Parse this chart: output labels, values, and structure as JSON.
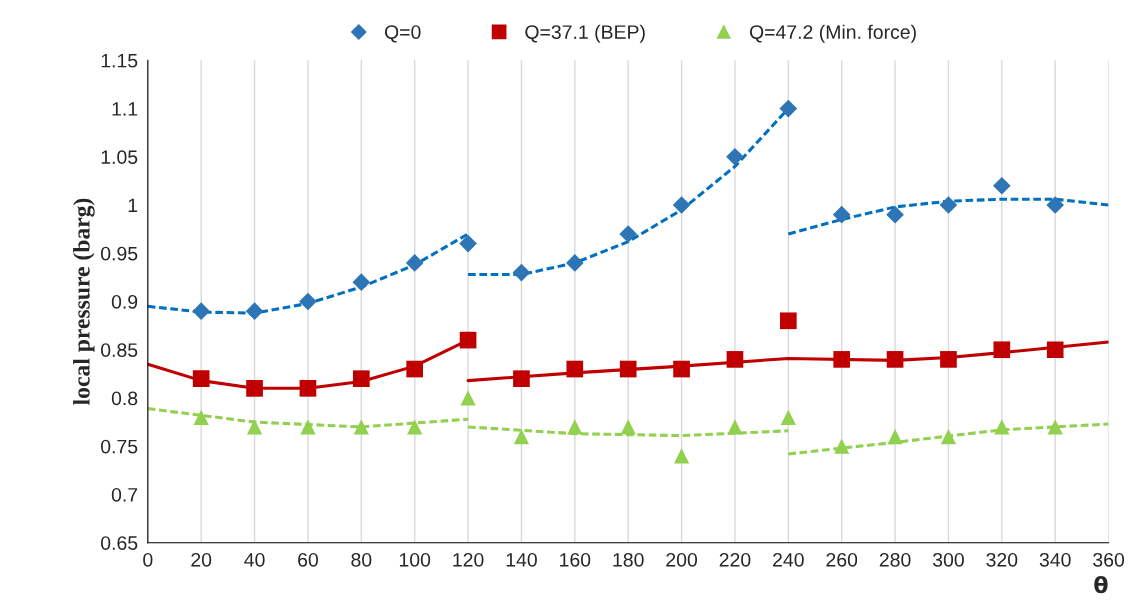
{
  "chart_data": {
    "type": "scatter",
    "xlabel": "θ",
    "ylabel": "local pressure (barg)",
    "x": [
      20,
      40,
      60,
      80,
      100,
      120,
      140,
      160,
      180,
      200,
      220,
      240,
      260,
      280,
      300,
      320,
      340
    ],
    "xlim": [
      0,
      360
    ],
    "xticks": [
      0,
      20,
      40,
      60,
      80,
      100,
      120,
      140,
      160,
      180,
      200,
      220,
      240,
      260,
      280,
      300,
      320,
      340,
      360
    ],
    "ylim": [
      0.65,
      1.15
    ],
    "yticks": [
      0.65,
      0.7,
      0.75,
      0.8,
      0.85,
      0.9,
      0.95,
      1,
      1.05,
      1.1,
      1.15
    ],
    "grid": "x",
    "legend": "top",
    "series": [
      {
        "name": "Q=0",
        "marker": "diamond",
        "color": "#2e75b6",
        "values": [
          0.89,
          0.89,
          0.9,
          0.92,
          0.94,
          0.96,
          0.93,
          0.94,
          0.97,
          1.0,
          1.05,
          1.1,
          0.99,
          0.99,
          1.0,
          1.02,
          1.0
        ]
      },
      {
        "name": "Q=37.1 (BEP)",
        "marker": "square",
        "color": "#c00000",
        "values": [
          0.82,
          0.81,
          0.81,
          0.82,
          0.83,
          0.86,
          0.82,
          0.83,
          0.83,
          0.83,
          0.84,
          0.88,
          0.84,
          0.84,
          0.84,
          0.85,
          0.85
        ]
      },
      {
        "name": "Q=47.2 (Min. force)",
        "marker": "triangle",
        "color": "#92d050",
        "values": [
          0.78,
          0.77,
          0.77,
          0.77,
          0.77,
          0.8,
          0.76,
          0.77,
          0.77,
          0.74,
          0.77,
          0.78,
          0.75,
          0.76,
          0.76,
          0.77,
          0.77
        ]
      },
      {
        "type": "line",
        "line_style": "dashed",
        "color": "#0070c0",
        "x": [
          0,
          20,
          40,
          60,
          80,
          100,
          120
        ],
        "values": [
          0.895,
          0.889,
          0.888,
          0.898,
          0.915,
          0.938,
          0.97
        ]
      },
      {
        "type": "line",
        "line_style": "dashed",
        "color": "#0070c0",
        "x": [
          120,
          140,
          160,
          180,
          200,
          220,
          240
        ],
        "values": [
          0.928,
          0.928,
          0.94,
          0.962,
          0.995,
          1.04,
          1.1
        ]
      },
      {
        "type": "line",
        "line_style": "dashed",
        "color": "#0070c0",
        "x": [
          240,
          260,
          280,
          300,
          320,
          340,
          360
        ],
        "values": [
          0.97,
          0.985,
          0.998,
          1.004,
          1.006,
          1.006,
          1.0
        ]
      },
      {
        "type": "line",
        "line_style": "solid",
        "color": "#c00000",
        "x": [
          0,
          20,
          40,
          60,
          80,
          100,
          120
        ],
        "values": [
          0.835,
          0.818,
          0.81,
          0.81,
          0.817,
          0.833,
          0.86
        ]
      },
      {
        "type": "line",
        "line_style": "solid",
        "color": "#c00000",
        "x": [
          120,
          160,
          200,
          240,
          280,
          300,
          320,
          360
        ],
        "values": [
          0.818,
          0.826,
          0.833,
          0.841,
          0.839,
          0.842,
          0.847,
          0.858
        ]
      },
      {
        "type": "line",
        "line_style": "dashed",
        "color": "#92d050",
        "x": [
          0,
          40,
          80,
          120
        ],
        "values": [
          0.789,
          0.775,
          0.77,
          0.778
        ]
      },
      {
        "type": "line",
        "line_style": "dashed",
        "color": "#92d050",
        "x": [
          120,
          160,
          200,
          240
        ],
        "values": [
          0.77,
          0.763,
          0.761,
          0.766
        ]
      },
      {
        "type": "line",
        "line_style": "dashed",
        "color": "#92d050",
        "x": [
          240,
          280,
          320,
          360
        ],
        "values": [
          0.742,
          0.754,
          0.767,
          0.773
        ]
      }
    ]
  }
}
